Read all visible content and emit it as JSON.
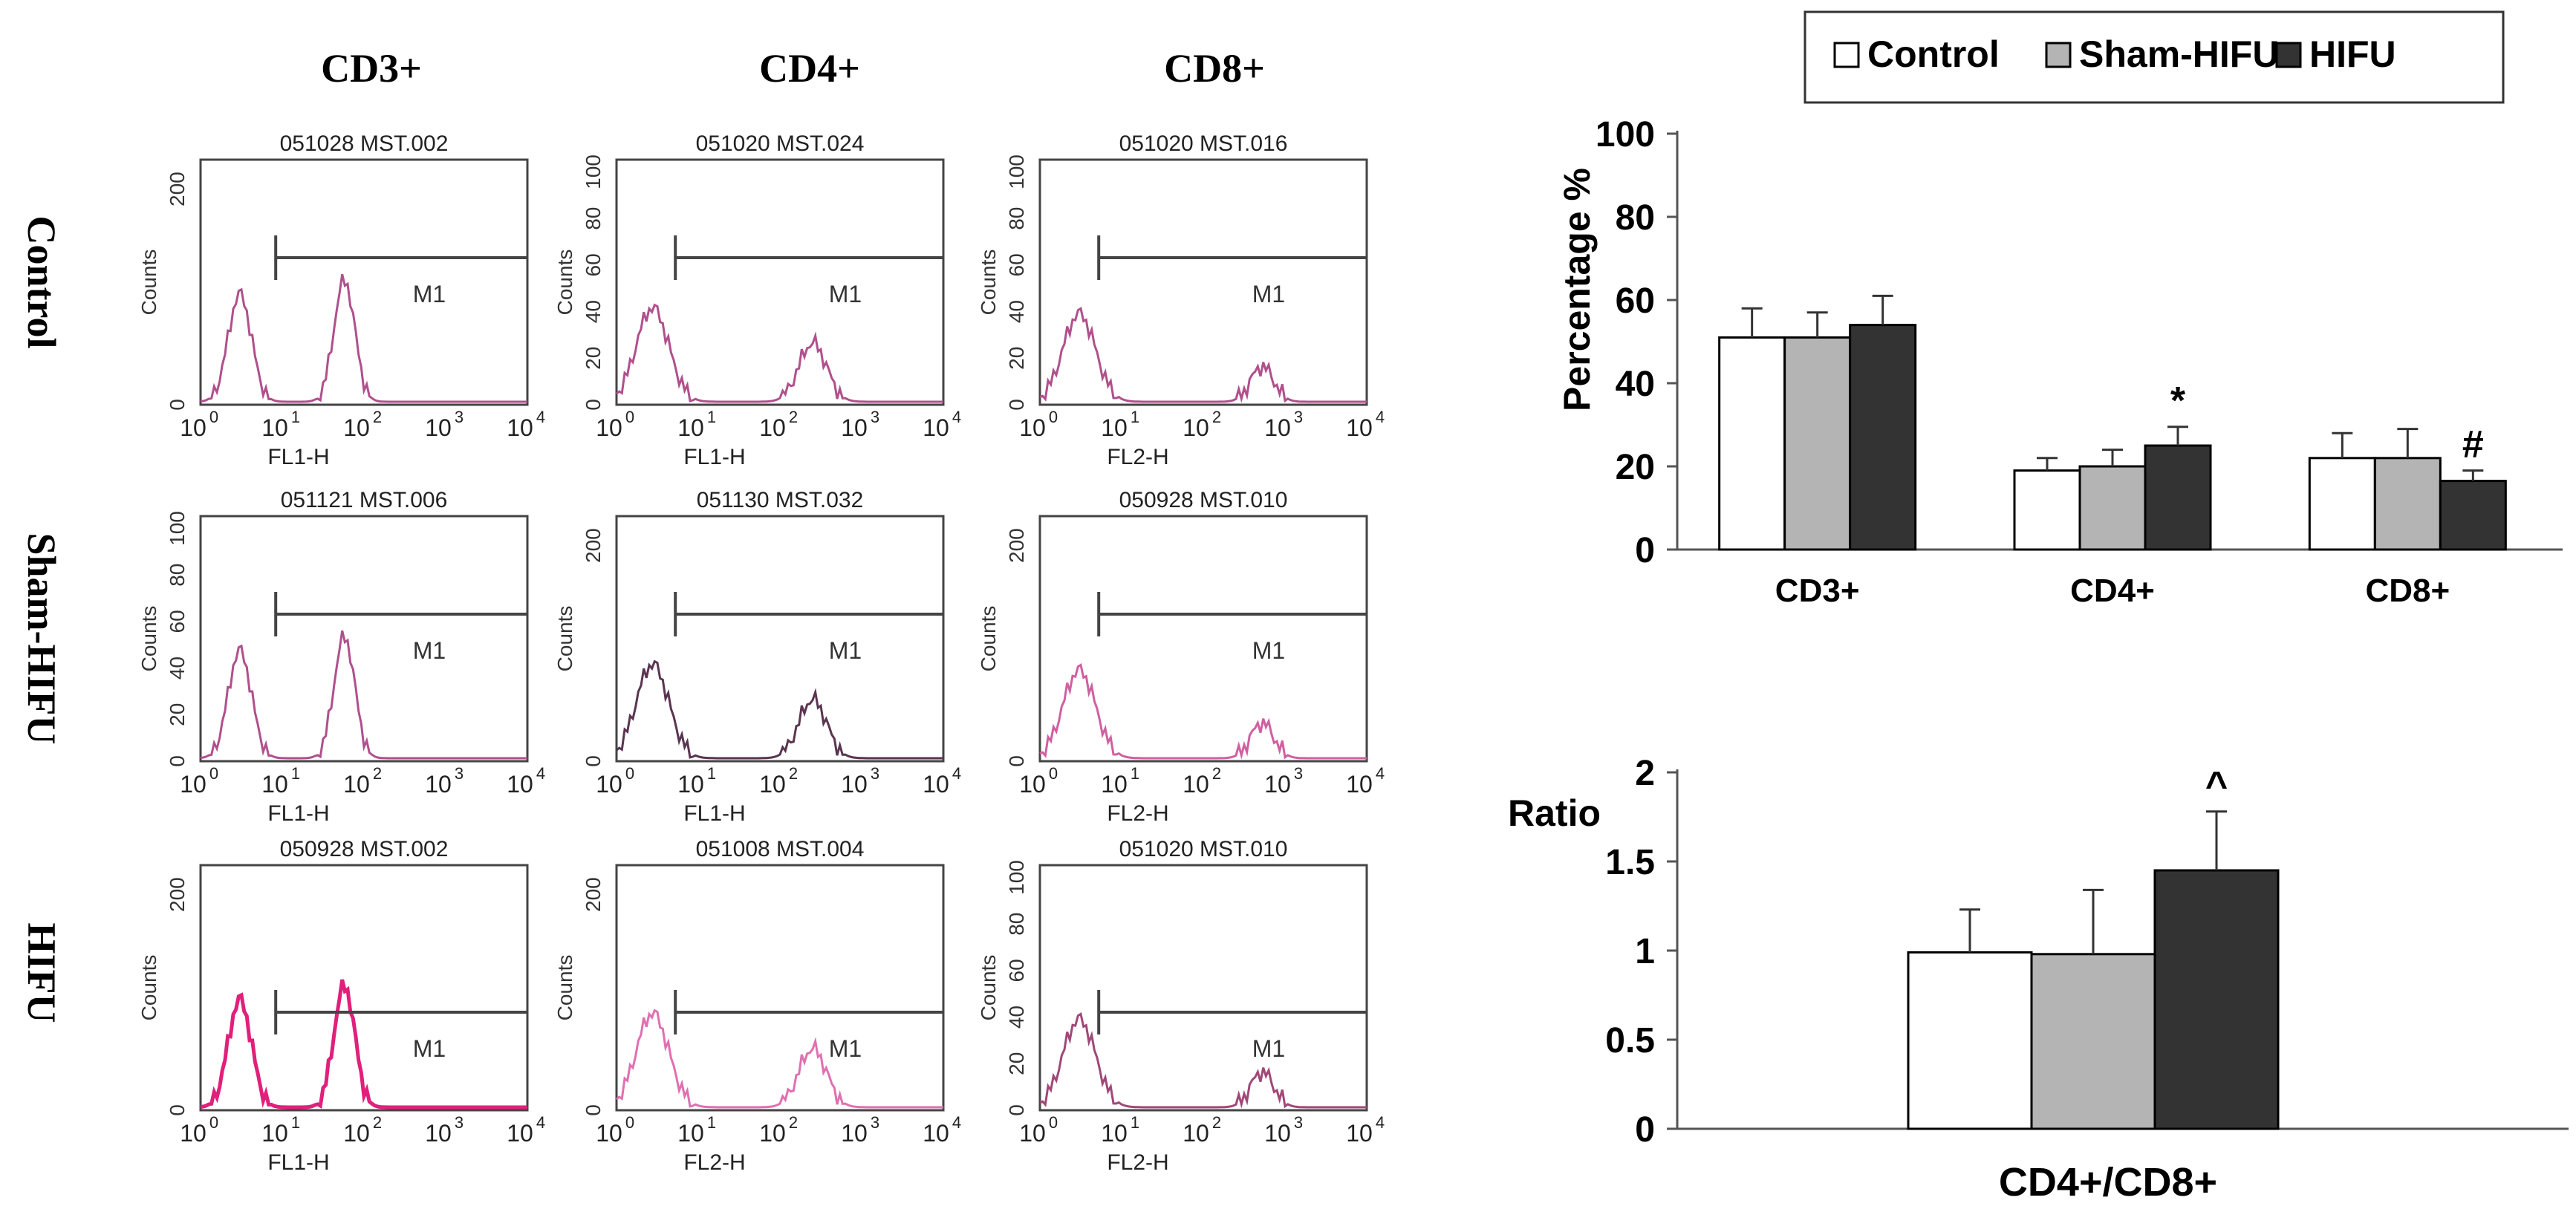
{
  "figure": {
    "column_headers": [
      "CD3+",
      "CD4+",
      "CD8+"
    ],
    "row_labels": [
      "Control",
      "Sham-HIFU",
      "HIFU"
    ],
    "histograms": [
      [
        {
          "sample_id": "051028 MST.002",
          "xlabel": "FL1-H",
          "ylabel": "Counts",
          "yticks": [
            "0",
            "200"
          ],
          "gate": "M1",
          "color": "#b0508c"
        },
        {
          "sample_id": "051020 MST.024",
          "xlabel": "FL1-H",
          "ylabel": "Counts",
          "yticks": [
            "0",
            "20",
            "40",
            "60",
            "80",
            "100"
          ],
          "gate": "M1",
          "color": "#b0508c"
        },
        {
          "sample_id": "051020 MST.016",
          "xlabel": "FL2-H",
          "ylabel": "Counts",
          "yticks": [
            "0",
            "20",
            "40",
            "60",
            "80",
            "100"
          ],
          "gate": "M1",
          "color": "#b0508c"
        }
      ],
      [
        {
          "sample_id": "051121 MST.006",
          "xlabel": "FL1-H",
          "ylabel": "Counts",
          "yticks": [
            "0",
            "20",
            "40",
            "60",
            "80",
            "100"
          ],
          "gate": "M1",
          "color": "#b0508c"
        },
        {
          "sample_id": "051130 MST.032",
          "xlabel": "FL1-H",
          "ylabel": "Counts",
          "yticks": [
            "0",
            "200"
          ],
          "gate": "M1",
          "color": "#5a3550"
        },
        {
          "sample_id": "050928 MST.010",
          "xlabel": "FL2-H",
          "ylabel": "Counts",
          "yticks": [
            "0",
            "200"
          ],
          "gate": "M1",
          "color": "#d060a0"
        }
      ],
      [
        {
          "sample_id": "050928 MST.002",
          "xlabel": "FL1-H",
          "ylabel": "Counts",
          "yticks": [
            "0",
            "200"
          ],
          "gate": "M1",
          "color": "#e0207a"
        },
        {
          "sample_id": "051008 MST.004",
          "xlabel": "FL2-H",
          "ylabel": "Counts",
          "yticks": [
            "0",
            "200"
          ],
          "gate": "M1",
          "color": "#e070b0"
        },
        {
          "sample_id": "051020 MST.010",
          "xlabel": "FL2-H",
          "ylabel": "Counts",
          "yticks": [
            "0",
            "20",
            "40",
            "60",
            "80",
            "100"
          ],
          "gate": "M1",
          "color": "#a04878"
        }
      ]
    ],
    "log_xticks": [
      "10",
      "10",
      "10",
      "10",
      "10"
    ],
    "log_xexponents": [
      "0",
      "1",
      "2",
      "3",
      "4"
    ]
  },
  "legend": {
    "entries": [
      {
        "label": "Control",
        "color": "#ffffff"
      },
      {
        "label": "Sham-HIFU",
        "color": "#b4b4b4"
      },
      {
        "label": "HIFU",
        "color": "#333333"
      }
    ]
  },
  "chart_data": [
    {
      "type": "bar",
      "title": "",
      "xlabel": "",
      "ylabel": "Percentage %",
      "ylim": [
        0,
        100
      ],
      "yticks": [
        "0",
        "20",
        "40",
        "60",
        "80",
        "100"
      ],
      "categories": [
        "CD3+",
        "CD4+",
        "CD8+"
      ],
      "series": [
        {
          "name": "Control",
          "color": "#ffffff",
          "values": [
            51,
            19,
            22
          ],
          "errors": [
            7,
            3,
            6
          ]
        },
        {
          "name": "Sham-HIFU",
          "color": "#b4b4b4",
          "values": [
            51,
            20,
            22
          ],
          "errors": [
            6,
            4,
            7
          ]
        },
        {
          "name": "HIFU",
          "color": "#333333",
          "values": [
            54,
            25,
            16.5
          ],
          "errors": [
            7,
            4.5,
            2.5
          ]
        }
      ],
      "annotations": [
        {
          "category": "CD4+",
          "series": "HIFU",
          "text": "*"
        },
        {
          "category": "CD8+",
          "series": "HIFU",
          "text": "#"
        }
      ]
    },
    {
      "type": "bar",
      "title": "",
      "xlabel": "CD4+/CD8+",
      "ylabel": "Ratio",
      "ylim": [
        0,
        2
      ],
      "yticks": [
        "0",
        "0.5",
        "1",
        "1.5",
        "2"
      ],
      "categories": [
        "CD4+/CD8+"
      ],
      "series": [
        {
          "name": "Control",
          "color": "#ffffff",
          "values": [
            0.99
          ],
          "errors": [
            0.24
          ]
        },
        {
          "name": "Sham-HIFU",
          "color": "#b4b4b4",
          "values": [
            0.98
          ],
          "errors": [
            0.36
          ]
        },
        {
          "name": "HIFU",
          "color": "#333333",
          "values": [
            1.45
          ],
          "errors": [
            0.33
          ]
        }
      ],
      "annotations": [
        {
          "category": "CD4+/CD8+",
          "series": "HIFU",
          "text": "^"
        }
      ]
    }
  ]
}
